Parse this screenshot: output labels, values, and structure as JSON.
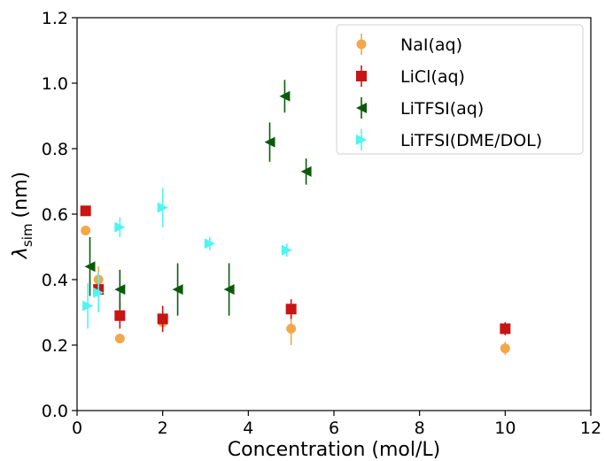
{
  "chart_data": {
    "type": "scatter",
    "title": "",
    "xlabel": "Concentration (mol/L)",
    "ylabel_main": "λ",
    "ylabel_sub": "sim",
    "ylabel_unit": "(nm)",
    "xlim": [
      0,
      12
    ],
    "ylim": [
      0.0,
      1.2
    ],
    "xticks": [
      0,
      2,
      4,
      6,
      8,
      10,
      12
    ],
    "xtick_labels": [
      "0",
      "2",
      "4",
      "6",
      "8",
      "10",
      "12"
    ],
    "yticks": [
      0.0,
      0.2,
      0.4,
      0.6,
      0.8,
      1.0,
      1.2
    ],
    "ytick_labels": [
      "0.0",
      "0.2",
      "0.4",
      "0.6",
      "0.8",
      "1.0",
      "1.2"
    ],
    "grid": false,
    "legend_position": "top-right",
    "series": [
      {
        "name": "NaI(aq)",
        "marker": "circle",
        "color": "#f2a84a",
        "points": [
          {
            "x": 0.2,
            "y": 0.55,
            "err": 0.0
          },
          {
            "x": 0.5,
            "y": 0.4,
            "err": 0.04
          },
          {
            "x": 1.0,
            "y": 0.22,
            "err": 0.0
          },
          {
            "x": 2.0,
            "y": 0.27,
            "err": 0.03
          },
          {
            "x": 5.0,
            "y": 0.25,
            "err": 0.05
          },
          {
            "x": 10.0,
            "y": 0.19,
            "err": 0.02
          }
        ]
      },
      {
        "name": "LiCl(aq)",
        "marker": "square",
        "color": "#c81414",
        "points": [
          {
            "x": 0.2,
            "y": 0.61,
            "err": 0.0
          },
          {
            "x": 0.5,
            "y": 0.37,
            "err": 0.02
          },
          {
            "x": 1.0,
            "y": 0.29,
            "err": 0.04
          },
          {
            "x": 2.0,
            "y": 0.28,
            "err": 0.04
          },
          {
            "x": 5.0,
            "y": 0.31,
            "err": 0.03
          },
          {
            "x": 10.0,
            "y": 0.25,
            "err": 0.02
          }
        ]
      },
      {
        "name": "LiTFSI(aq)",
        "marker": "triangle-left",
        "color": "#0b5a0b",
        "points": [
          {
            "x": 0.3,
            "y": 0.44,
            "err": 0.09
          },
          {
            "x": 1.0,
            "y": 0.37,
            "err": 0.06
          },
          {
            "x": 2.35,
            "y": 0.37,
            "err": 0.08
          },
          {
            "x": 3.55,
            "y": 0.37,
            "err": 0.08
          },
          {
            "x": 4.5,
            "y": 0.82,
            "err": 0.06
          },
          {
            "x": 4.85,
            "y": 0.96,
            "err": 0.05
          },
          {
            "x": 5.35,
            "y": 0.73,
            "err": 0.04
          }
        ]
      },
      {
        "name": "LiTFSI(DME/DOL)",
        "marker": "triangle-right",
        "color": "#4ff5f0",
        "points": [
          {
            "x": 0.25,
            "y": 0.32,
            "err": 0.07
          },
          {
            "x": 0.5,
            "y": 0.36,
            "err": 0.06
          },
          {
            "x": 1.0,
            "y": 0.56,
            "err": 0.03
          },
          {
            "x": 2.0,
            "y": 0.62,
            "err": 0.06
          },
          {
            "x": 3.1,
            "y": 0.51,
            "err": 0.02
          },
          {
            "x": 4.9,
            "y": 0.49,
            "err": 0.02
          }
        ]
      }
    ]
  }
}
